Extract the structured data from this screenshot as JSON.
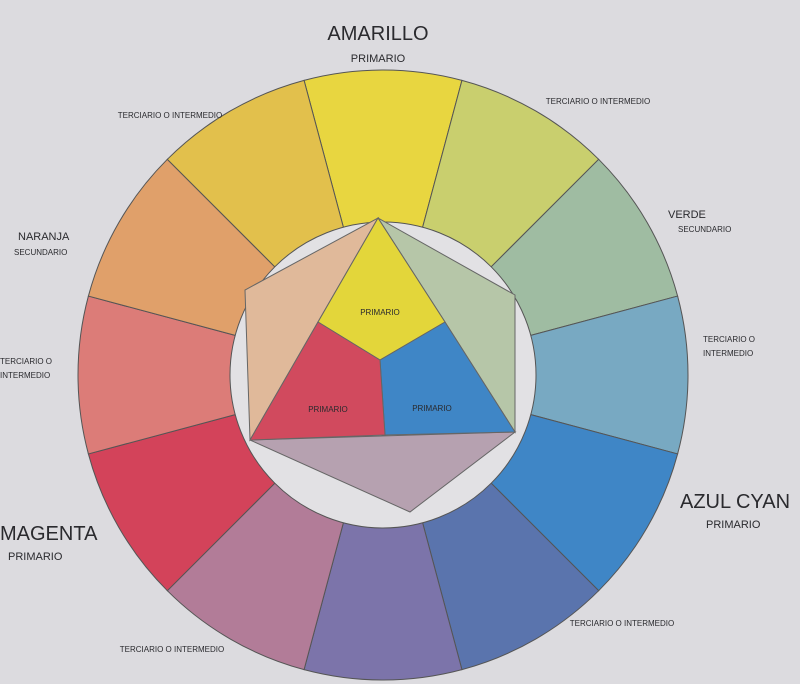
{
  "wheel": {
    "top": {
      "name": "AMARILLO",
      "kind": "PRIMARIO"
    },
    "top_left": "TERCIARIO O INTERMEDIO",
    "top_right": "TERCIARIO O INTERMEDIO",
    "left_upper": {
      "name": "NARANJA",
      "kind": "SECUNDARIO"
    },
    "right_upper": {
      "name": "VERDE",
      "kind": "SECUNDARIO"
    },
    "left_middle": [
      "TERCIARIO O",
      "INTERMEDIO"
    ],
    "right_middle": [
      "TERCIARIO O",
      "INTERMEDIO"
    ],
    "left_lower": {
      "name": "MAGENTA",
      "kind": "PRIMARIO"
    },
    "right_lower": {
      "name": "AZUL CYAN",
      "kind": "PRIMARIO"
    },
    "bottom_left": "TERCIARIO O INTERMEDIO",
    "bottom_right": "TERCIARIO O INTERMEDIO",
    "inner": [
      "PRIMARIO",
      "PRIMARIO",
      "PRIMARIO"
    ]
  }
}
